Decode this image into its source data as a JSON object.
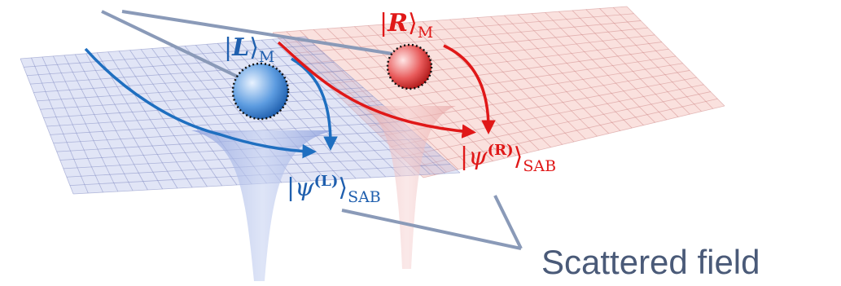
{
  "labels": [
    {
      "main": "|",
      "symbol": "L",
      "close": "⟩",
      "sub": "M"
    },
    {
      "main": "|",
      "symbol": "R",
      "close": "⟩",
      "sub": "M"
    },
    {
      "main": "|ψ",
      "sup": "(L)",
      "close": "⟩",
      "sub": "SAB"
    },
    {
      "main": "|ψ",
      "sup": "(R)",
      "close": "⟩",
      "sub": "SAB"
    }
  ],
  "caption": "Scattered field"
}
